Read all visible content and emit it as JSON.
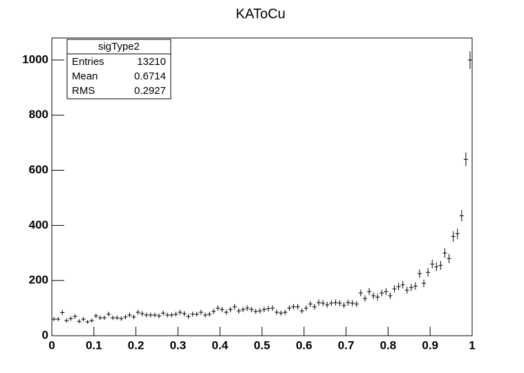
{
  "chart_data": {
    "type": "histogram",
    "title": "KAToCu",
    "bins": [
      0,
      0.01,
      0.02,
      0.03,
      0.04,
      0.05,
      0.06,
      0.07,
      0.08,
      0.09,
      0.1,
      0.11,
      0.12,
      0.13,
      0.14,
      0.15,
      0.16,
      0.17,
      0.18,
      0.19,
      0.2,
      0.21,
      0.22,
      0.23,
      0.24,
      0.25,
      0.26,
      0.27,
      0.28,
      0.29,
      0.3,
      0.31,
      0.32,
      0.33,
      0.34,
      0.35,
      0.36,
      0.37,
      0.38,
      0.39,
      0.4,
      0.41,
      0.42,
      0.43,
      0.44,
      0.45,
      0.46,
      0.47,
      0.48,
      0.49,
      0.5,
      0.51,
      0.52,
      0.53,
      0.54,
      0.55,
      0.56,
      0.57,
      0.58,
      0.59,
      0.6,
      0.61,
      0.62,
      0.63,
      0.64,
      0.65,
      0.66,
      0.67,
      0.68,
      0.69,
      0.7,
      0.71,
      0.72,
      0.73,
      0.74,
      0.75,
      0.76,
      0.77,
      0.78,
      0.79,
      0.8,
      0.81,
      0.82,
      0.83,
      0.84,
      0.85,
      0.86,
      0.87,
      0.88,
      0.89,
      0.9,
      0.91,
      0.92,
      0.93,
      0.94,
      0.95,
      0.96,
      0.97,
      0.98,
      0.99,
      1
    ],
    "values": [
      60,
      60,
      84,
      55,
      62,
      70,
      52,
      60,
      50,
      55,
      72,
      65,
      65,
      78,
      65,
      65,
      62,
      68,
      75,
      68,
      85,
      80,
      75,
      75,
      75,
      72,
      82,
      75,
      75,
      78,
      85,
      80,
      70,
      78,
      78,
      85,
      75,
      78,
      88,
      100,
      95,
      85,
      95,
      105,
      90,
      95,
      100,
      95,
      88,
      90,
      95,
      98,
      100,
      85,
      82,
      85,
      100,
      105,
      105,
      90,
      100,
      115,
      105,
      120,
      118,
      112,
      118,
      120,
      118,
      110,
      120,
      118,
      115,
      155,
      135,
      160,
      145,
      140,
      155,
      160,
      145,
      170,
      178,
      185,
      165,
      175,
      180,
      225,
      190,
      230,
      260,
      250,
      255,
      300,
      280,
      360,
      370,
      435,
      640,
      1000
    ],
    "errors": [
      7.7,
      7.7,
      9.2,
      7.4,
      7.9,
      8.4,
      7.2,
      7.7,
      7.1,
      7.4,
      8.5,
      8.1,
      8.1,
      8.8,
      8.1,
      8.1,
      7.9,
      8.2,
      8.7,
      8.2,
      9.2,
      8.9,
      8.7,
      8.7,
      8.7,
      8.5,
      9.1,
      8.7,
      8.7,
      8.8,
      9.2,
      8.9,
      8.4,
      8.8,
      8.8,
      9.2,
      8.7,
      8.8,
      9.4,
      10,
      9.7,
      9.2,
      9.7,
      10.2,
      9.5,
      9.7,
      10,
      9.7,
      9.4,
      9.5,
      9.7,
      9.9,
      10,
      9.2,
      9.1,
      9.2,
      10,
      10.2,
      10.2,
      9.5,
      10,
      10.7,
      10.2,
      11,
      10.9,
      10.6,
      10.9,
      11,
      10.9,
      10.5,
      11,
      10.9,
      10.7,
      12.4,
      11.6,
      12.6,
      12,
      11.8,
      12.4,
      12.6,
      12,
      13,
      13.3,
      13.6,
      12.8,
      13.2,
      13.4,
      15,
      13.8,
      15.2,
      16.1,
      15.8,
      16,
      17.3,
      16.7,
      19,
      19.2,
      20.9,
      25.3,
      31.6
    ],
    "color": "#000000",
    "xlim": [
      0,
      1
    ],
    "xticks": [
      0,
      0.1,
      0.2,
      0.3,
      0.4,
      0.5,
      0.6,
      0.7,
      0.8,
      0.9,
      1
    ],
    "ylim": [
      0,
      1080
    ],
    "yticks": [
      0,
      200,
      400,
      600,
      800,
      1000
    ],
    "stats": {
      "title": "sigType2",
      "rows": [
        {
          "label": "Entries",
          "value": 13210
        },
        {
          "label": "Mean",
          "value": 0.6714
        },
        {
          "label": "RMS",
          "value": 0.2927
        }
      ]
    }
  }
}
